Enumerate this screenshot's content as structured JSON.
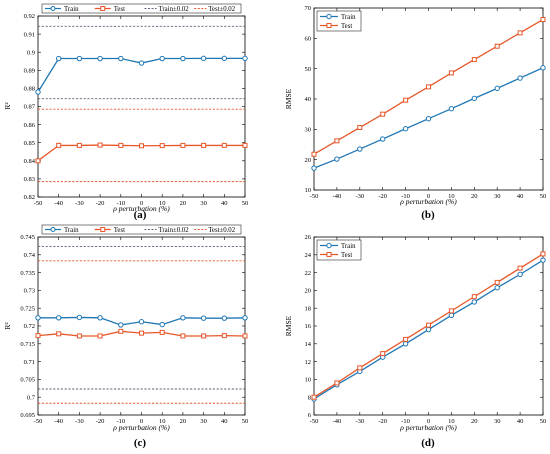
{
  "colors": {
    "train": "#1f77b4",
    "test": "#e8572a",
    "train_band": "#6b5a78",
    "test_band": "#e8572a",
    "axis": "#000000"
  },
  "chart_data": [
    {
      "id": "a",
      "type": "line",
      "caption": "(a)",
      "xlabel": "ρ perturbation (%)",
      "ylabel": "R²",
      "x": [
        -50,
        -40,
        -30,
        -20,
        -10,
        0,
        10,
        20,
        30,
        40,
        50
      ],
      "xlim": [
        -50,
        50
      ],
      "ylim": [
        0.82,
        0.92
      ],
      "yticks": [
        "0.82",
        "0.83",
        "0.84",
        "0.85",
        "0.86",
        "0.87",
        "0.88",
        "0.89",
        "0.9",
        "0.91",
        "0.92"
      ],
      "xticks": [
        "-50",
        "-40",
        "-30",
        "-20",
        "-10",
        "0",
        "10",
        "20",
        "30",
        "40",
        "50"
      ],
      "legend_position": "top",
      "series": [
        {
          "name": "Train",
          "color": "train",
          "marker": "circle",
          "values": [
            0.878,
            0.8965,
            0.8965,
            0.8965,
            0.8965,
            0.894,
            0.8965,
            0.8965,
            0.8966,
            0.8966,
            0.8966
          ]
        },
        {
          "name": "Test",
          "color": "test",
          "marker": "square",
          "values": [
            0.84,
            0.8485,
            0.8485,
            0.8487,
            0.8485,
            0.8483,
            0.8484,
            0.8485,
            0.8485,
            0.8485,
            0.8485
          ]
        }
      ],
      "bands": [
        {
          "name": "Train±0.02",
          "color": "train_band",
          "values": [
            0.9143,
            0.8743
          ]
        },
        {
          "name": "Test±0.02",
          "color": "test_band",
          "values": [
            0.8685,
            0.8285
          ]
        }
      ]
    },
    {
      "id": "b",
      "type": "line",
      "caption": "(b)",
      "xlabel": "ρ perturbation (%)",
      "ylabel": "RMSE",
      "x": [
        -50,
        -40,
        -30,
        -20,
        -10,
        0,
        10,
        20,
        30,
        40,
        50
      ],
      "xlim": [
        -50,
        50
      ],
      "ylim": [
        10,
        70
      ],
      "yticks": [
        "10",
        "20",
        "30",
        "40",
        "50",
        "60",
        "70"
      ],
      "xticks": [
        "-50",
        "-40",
        "-30",
        "-20",
        "-10",
        "0",
        "10",
        "20",
        "30",
        "40",
        "50"
      ],
      "legend_position": "top-left",
      "series": [
        {
          "name": "Train",
          "color": "train",
          "marker": "circle",
          "values": [
            17.2,
            20.2,
            23.5,
            26.8,
            30.2,
            33.5,
            36.8,
            40.2,
            43.5,
            46.9,
            50.3
          ]
        },
        {
          "name": "Test",
          "color": "test",
          "marker": "square",
          "values": [
            21.8,
            26.2,
            30.6,
            35.0,
            39.6,
            44.0,
            48.6,
            53.0,
            57.4,
            61.8,
            66.2
          ]
        }
      ],
      "bands": []
    },
    {
      "id": "c",
      "type": "line",
      "caption": "(c)",
      "xlabel": "ρ perturbation (%)",
      "ylabel": "R²",
      "x": [
        -50,
        -40,
        -30,
        -20,
        -10,
        0,
        10,
        20,
        30,
        40,
        50
      ],
      "xlim": [
        -50,
        50
      ],
      "ylim": [
        0.695,
        0.745
      ],
      "yticks": [
        "0.695",
        "0.7",
        "0.705",
        "0.71",
        "0.715",
        "0.72",
        "0.725",
        "0.73",
        "0.735",
        "0.74",
        "0.745"
      ],
      "xticks": [
        "-50",
        "-40",
        "-30",
        "-20",
        "-10",
        "0",
        "10",
        "20",
        "30",
        "40",
        "50"
      ],
      "legend_position": "top",
      "series": [
        {
          "name": "Train",
          "color": "train",
          "marker": "circle",
          "values": [
            0.7223,
            0.7223,
            0.7224,
            0.7223,
            0.7203,
            0.7212,
            0.7204,
            0.7223,
            0.7222,
            0.7222,
            0.7223
          ]
        },
        {
          "name": "Test",
          "color": "test",
          "marker": "square",
          "values": [
            0.7173,
            0.7178,
            0.7172,
            0.7172,
            0.7185,
            0.718,
            0.7182,
            0.7172,
            0.7172,
            0.7173,
            0.7172
          ]
        }
      ],
      "bands": [
        {
          "name": "Train±0.02",
          "color": "train_band",
          "values": [
            0.7423,
            0.7023
          ]
        },
        {
          "name": "Test±0.02",
          "color": "test_band",
          "values": [
            0.7383,
            0.6983
          ]
        }
      ]
    },
    {
      "id": "d",
      "type": "line",
      "caption": "(d)",
      "xlabel": "ρ perturbation (%)",
      "ylabel": "RMSE",
      "x": [
        -50,
        -40,
        -30,
        -20,
        -10,
        0,
        10,
        20,
        30,
        40,
        50
      ],
      "xlim": [
        -50,
        50
      ],
      "ylim": [
        6,
        26
      ],
      "yticks": [
        "6",
        "8",
        "10",
        "12",
        "14",
        "16",
        "18",
        "20",
        "22",
        "24",
        "26"
      ],
      "xticks": [
        "-50",
        "-40",
        "-30",
        "-20",
        "-10",
        "0",
        "10",
        "20",
        "30",
        "40",
        "50"
      ],
      "legend_position": "top-left",
      "series": [
        {
          "name": "Train",
          "color": "train",
          "marker": "circle",
          "values": [
            7.8,
            9.4,
            10.9,
            12.5,
            14.0,
            15.6,
            17.2,
            18.7,
            20.3,
            21.8,
            23.4
          ]
        },
        {
          "name": "Test",
          "color": "test",
          "marker": "square",
          "values": [
            8.0,
            9.6,
            11.3,
            12.9,
            14.5,
            16.1,
            17.7,
            19.3,
            20.9,
            22.5,
            24.1
          ]
        }
      ],
      "bands": []
    }
  ]
}
